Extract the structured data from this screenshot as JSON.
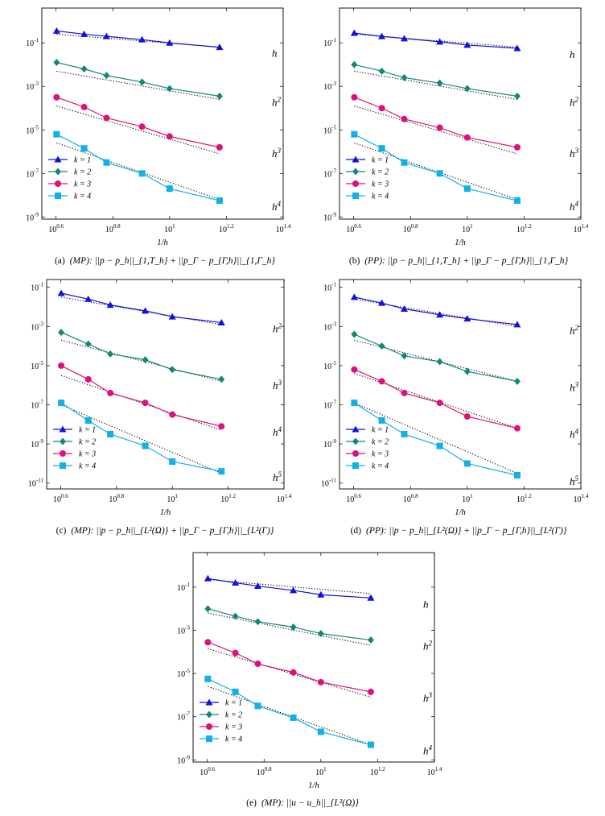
{
  "legend": {
    "entries": [
      {
        "label": "k = 1",
        "color": "#1010e0",
        "marker": "triangle"
      },
      {
        "label": "k = 2",
        "color": "#118878",
        "marker": "diamond"
      },
      {
        "label": "k = 3",
        "color": "#e0107a",
        "marker": "circle"
      },
      {
        "label": "k = 4",
        "color": "#12b0e6",
        "marker": "square"
      }
    ]
  },
  "chart_data": [
    {
      "type": "line",
      "title": "",
      "xlabel": "1/h",
      "ylabel": "",
      "xscale": "log",
      "yscale": "log",
      "xlim_exp": [
        0.55,
        1.4
      ],
      "ylim_exp": [
        -9.1,
        0.6
      ],
      "xticks": [
        {
          "exp": "0.6"
        },
        {
          "exp": "0.8"
        },
        {
          "exp": "1"
        },
        {
          "exp": "1.2"
        },
        {
          "exp": "1.4"
        }
      ],
      "yticks": [
        {
          "exp": "-1",
          "value": -1
        },
        {
          "exp": "-3",
          "value": -3
        },
        {
          "exp": "-5",
          "value": -5
        },
        {
          "exp": "-7",
          "value": -7
        },
        {
          "exp": "-9",
          "value": -9
        }
      ],
      "x_log10": [
        0.602,
        0.699,
        0.778,
        0.903,
        1.0,
        1.176
      ],
      "series": [
        {
          "name": "k = 1",
          "log10_values": [
            -0.45,
            -0.6,
            -0.7,
            -0.85,
            -1.0,
            -1.2
          ],
          "rate_label": "h",
          "rate_exp": ""
        },
        {
          "name": "k = 2",
          "log10_values": [
            -1.9,
            -2.2,
            -2.5,
            -2.8,
            -3.1,
            -3.45
          ],
          "rate_label": "h",
          "rate_exp": "2"
        },
        {
          "name": "k = 3",
          "log10_values": [
            -3.5,
            -3.95,
            -4.45,
            -4.85,
            -5.3,
            -5.8
          ],
          "rate_label": "h",
          "rate_exp": "3"
        },
        {
          "name": "k = 4",
          "log10_values": [
            -5.2,
            -5.85,
            -6.5,
            -7.0,
            -7.7,
            -8.25
          ],
          "rate_label": "h",
          "rate_exp": "4"
        }
      ],
      "reference_lines": [
        {
          "log10_values": [
            -0.6,
            -1.2
          ]
        },
        {
          "log10_values": [
            -2.3,
            -3.6
          ]
        },
        {
          "log10_values": [
            -3.9,
            -6.1
          ]
        },
        {
          "log10_values": [
            -5.6,
            -8.2
          ]
        }
      ],
      "caption": {
        "label": "(a)",
        "text": "(MP): ||p − p_h||_{1,T_h} + ||p_Γ − p_{Γ,h}||_{1,Γ_h}"
      },
      "legend_placement": "bottom-left"
    },
    {
      "type": "line",
      "title": "",
      "xlabel": "1/h",
      "ylabel": "",
      "xscale": "log",
      "yscale": "log",
      "xlim_exp": [
        0.55,
        1.4
      ],
      "ylim_exp": [
        -9.1,
        0.6
      ],
      "xticks": [
        {
          "exp": "0.6"
        },
        {
          "exp": "0.8"
        },
        {
          "exp": "1"
        },
        {
          "exp": "1.2"
        },
        {
          "exp": "1.4"
        }
      ],
      "yticks": [
        {
          "exp": "-1",
          "value": -1
        },
        {
          "exp": "-3",
          "value": -3
        },
        {
          "exp": "-5",
          "value": -5
        },
        {
          "exp": "-7",
          "value": -7
        },
        {
          "exp": "-9",
          "value": -9
        }
      ],
      "x_log10": [
        0.602,
        0.699,
        0.778,
        0.903,
        1.0,
        1.176
      ],
      "series": [
        {
          "name": "k = 1",
          "log10_values": [
            -0.55,
            -0.7,
            -0.8,
            -0.95,
            -1.1,
            -1.25
          ],
          "rate_label": "h",
          "rate_exp": ""
        },
        {
          "name": "k = 2",
          "log10_values": [
            -2.0,
            -2.3,
            -2.6,
            -2.85,
            -3.1,
            -3.45
          ],
          "rate_label": "h",
          "rate_exp": "2"
        },
        {
          "name": "k = 3",
          "log10_values": [
            -3.5,
            -4.0,
            -4.5,
            -4.9,
            -5.35,
            -5.8
          ],
          "rate_label": "h",
          "rate_exp": "3"
        },
        {
          "name": "k = 4",
          "log10_values": [
            -5.2,
            -5.85,
            -6.5,
            -7.0,
            -7.7,
            -8.25
          ],
          "rate_label": "h",
          "rate_exp": "4"
        }
      ],
      "reference_lines": [
        {
          "log10_values": [
            -0.6,
            -1.2
          ]
        },
        {
          "log10_values": [
            -2.3,
            -3.6
          ]
        },
        {
          "log10_values": [
            -3.9,
            -6.1
          ]
        },
        {
          "log10_values": [
            -5.6,
            -8.2
          ]
        }
      ],
      "caption": {
        "label": "(b)",
        "text": "(PP): ||p − p_h||_{1,T_h} + ||p_Γ − p_{Γ,h}||_{1,Γ_h}"
      },
      "legend_placement": "bottom-left"
    },
    {
      "type": "line",
      "title": "",
      "xlabel": "1/h",
      "ylabel": "",
      "xscale": "log",
      "yscale": "log",
      "xlim_exp": [
        0.55,
        1.4
      ],
      "ylim_exp": [
        -11.3,
        -0.6
      ],
      "xticks": [
        {
          "exp": "0.6"
        },
        {
          "exp": "0.8"
        },
        {
          "exp": "1"
        },
        {
          "exp": "1.2"
        },
        {
          "exp": "1.4"
        }
      ],
      "yticks": [
        {
          "exp": "-1",
          "value": -1
        },
        {
          "exp": "-3",
          "value": -3
        },
        {
          "exp": "-5",
          "value": -5
        },
        {
          "exp": "-7",
          "value": -7
        },
        {
          "exp": "-9",
          "value": -9
        },
        {
          "exp": "-11",
          "value": -11
        }
      ],
      "x_log10": [
        0.602,
        0.699,
        0.778,
        0.903,
        1.0,
        1.176
      ],
      "series": [
        {
          "name": "k = 1",
          "log10_values": [
            -1.3,
            -1.6,
            -1.9,
            -2.2,
            -2.5,
            -2.8
          ],
          "rate_label": "h",
          "rate_exp": "2"
        },
        {
          "name": "k = 2",
          "log10_values": [
            -3.3,
            -3.9,
            -4.4,
            -4.7,
            -5.2,
            -5.7
          ],
          "rate_label": "h",
          "rate_exp": "3"
        },
        {
          "name": "k = 3",
          "log10_values": [
            -5.0,
            -5.7,
            -6.4,
            -6.9,
            -7.5,
            -8.1
          ],
          "rate_label": "h",
          "rate_exp": "4"
        },
        {
          "name": "k = 4",
          "log10_values": [
            -6.9,
            -7.8,
            -8.5,
            -9.1,
            -9.9,
            -10.4
          ],
          "rate_label": "h",
          "rate_exp": "5"
        }
      ],
      "reference_lines": [
        {
          "log10_values": [
            -1.5,
            -2.9
          ]
        },
        {
          "log10_values": [
            -3.7,
            -5.8
          ]
        },
        {
          "log10_values": [
            -5.5,
            -8.3
          ]
        },
        {
          "log10_values": [
            -7.0,
            -10.5
          ]
        }
      ],
      "caption": {
        "label": "(c)",
        "text": "(MP): ||p − p_h||_{L²(Ω)} + ||p_Γ − p_{Γ,h}||_{L²(Γ)}"
      },
      "legend_placement": "bottom-left"
    },
    {
      "type": "line",
      "title": "",
      "xlabel": "1/h",
      "ylabel": "",
      "xscale": "log",
      "yscale": "log",
      "xlim_exp": [
        0.55,
        1.4
      ],
      "ylim_exp": [
        -11.3,
        -0.6
      ],
      "xticks": [
        {
          "exp": "0.6"
        },
        {
          "exp": "0.8"
        },
        {
          "exp": "1"
        },
        {
          "exp": "1.2"
        },
        {
          "exp": "1.4"
        }
      ],
      "yticks": [
        {
          "exp": "-1",
          "value": -1
        },
        {
          "exp": "-3",
          "value": -3
        },
        {
          "exp": "-5",
          "value": -5
        },
        {
          "exp": "-7",
          "value": -7
        },
        {
          "exp": "-9",
          "value": -9
        },
        {
          "exp": "-11",
          "value": -11
        }
      ],
      "x_log10": [
        0.602,
        0.699,
        0.778,
        0.903,
        1.0,
        1.176
      ],
      "series": [
        {
          "name": "k = 1",
          "log10_values": [
            -1.5,
            -1.8,
            -2.1,
            -2.4,
            -2.6,
            -2.9
          ],
          "rate_label": "h",
          "rate_exp": "2"
        },
        {
          "name": "k = 2",
          "log10_values": [
            -3.4,
            -4.0,
            -4.5,
            -4.8,
            -5.3,
            -5.8
          ],
          "rate_label": "h",
          "rate_exp": "3"
        },
        {
          "name": "k = 3",
          "log10_values": [
            -5.2,
            -5.8,
            -6.4,
            -6.9,
            -7.6,
            -8.2
          ],
          "rate_label": "h",
          "rate_exp": "4"
        },
        {
          "name": "k = 4",
          "log10_values": [
            -6.9,
            -7.8,
            -8.5,
            -9.1,
            -10.0,
            -10.6
          ],
          "rate_label": "h",
          "rate_exp": "5"
        }
      ],
      "reference_lines": [
        {
          "log10_values": [
            -1.6,
            -3.0
          ]
        },
        {
          "log10_values": [
            -3.7,
            -5.8
          ]
        },
        {
          "log10_values": [
            -5.4,
            -8.2
          ]
        },
        {
          "log10_values": [
            -6.9,
            -10.5
          ]
        }
      ],
      "caption": {
        "label": "(d)",
        "text": "(PP): ||p − p_h||_{L²(Ω)} + ||p_Γ − p_{Γ,h}||_{L²(Γ)}"
      },
      "legend_placement": "bottom-left"
    },
    {
      "type": "line",
      "title": "",
      "xlabel": "1/h",
      "ylabel": "",
      "xscale": "log",
      "yscale": "log",
      "xlim_exp": [
        0.55,
        1.4
      ],
      "ylim_exp": [
        -9.1,
        0.6
      ],
      "xticks": [
        {
          "exp": "0.6"
        },
        {
          "exp": "0.8"
        },
        {
          "exp": "1"
        },
        {
          "exp": "1.2"
        },
        {
          "exp": "1.4"
        }
      ],
      "yticks": [
        {
          "exp": "-1",
          "value": -1
        },
        {
          "exp": "-3",
          "value": -3
        },
        {
          "exp": "-5",
          "value": -5
        },
        {
          "exp": "-7",
          "value": -7
        },
        {
          "exp": "-9",
          "value": -9
        }
      ],
      "x_log10": [
        0.602,
        0.699,
        0.778,
        0.903,
        1.0,
        1.176
      ],
      "series": [
        {
          "name": "k = 1",
          "log10_values": [
            -0.6,
            -0.8,
            -0.95,
            -1.15,
            -1.35,
            -1.5
          ],
          "rate_label": "h",
          "rate_exp": ""
        },
        {
          "name": "k = 2",
          "log10_values": [
            -2.0,
            -2.35,
            -2.6,
            -2.85,
            -3.15,
            -3.45
          ],
          "rate_label": "h",
          "rate_exp": "2"
        },
        {
          "name": "k = 3",
          "log10_values": [
            -3.55,
            -4.05,
            -4.55,
            -4.95,
            -5.4,
            -5.85
          ],
          "rate_label": "h",
          "rate_exp": "3"
        },
        {
          "name": "k = 4",
          "log10_values": [
            -5.25,
            -5.85,
            -6.5,
            -7.05,
            -7.7,
            -8.3
          ],
          "rate_label": "h",
          "rate_exp": "4"
        }
      ],
      "reference_lines": [
        {
          "log10_values": [
            -0.65,
            -1.3
          ]
        },
        {
          "log10_values": [
            -2.2,
            -3.7
          ]
        },
        {
          "log10_values": [
            -3.85,
            -6.1
          ]
        },
        {
          "log10_values": [
            -5.6,
            -8.3
          ]
        }
      ],
      "caption": {
        "label": "(e)",
        "text": "(MP): ||u − u_h||_{L²(Ω)}"
      },
      "legend_placement": "bottom-left"
    }
  ]
}
